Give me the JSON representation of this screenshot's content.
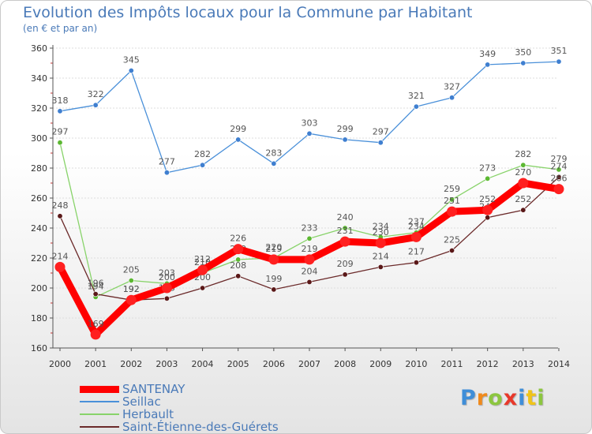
{
  "chart_data": {
    "type": "line",
    "title": "Evolution des Impôts locaux pour la Commune par Habitant",
    "subtitle": "(en € et par an)",
    "xlabel": "",
    "ylabel": "",
    "ylim": [
      160,
      360
    ],
    "yticks": [
      160,
      180,
      200,
      220,
      240,
      260,
      280,
      300,
      320,
      340,
      360
    ],
    "grid": true,
    "legend_position": "bottom-left",
    "categories": [
      "2000",
      "2001",
      "2002",
      "2003",
      "2004",
      "2005",
      "2006",
      "2007",
      "2008",
      "2009",
      "2010",
      "2011",
      "2012",
      "2013",
      "2014"
    ],
    "series": [
      {
        "name": "Seillac",
        "color": "#4a90d9",
        "marker": "#3f7fd0",
        "values": [
          318,
          322,
          345,
          277,
          282,
          299,
          283,
          303,
          299,
          297,
          321,
          327,
          349,
          350,
          351
        ]
      },
      {
        "name": "Herbault",
        "color": "#88d36a",
        "marker": "#5cb832",
        "values": [
          297,
          194,
          205,
          203,
          210,
          219,
          220,
          233,
          240,
          234,
          237,
          259,
          273,
          282,
          279
        ]
      },
      {
        "name": "Saint-Étienne-des-Guérets",
        "color": "#6b2a2a",
        "marker": "#5a1818",
        "values": [
          248,
          196,
          192,
          193,
          200,
          208,
          199,
          204,
          209,
          214,
          217,
          225,
          247,
          252,
          274
        ]
      },
      {
        "name": "SANTENAY",
        "color": "#ff0000",
        "marker": "#ff2020",
        "values": [
          214,
          169,
          192,
          200,
          212,
          226,
          219,
          219,
          231,
          230,
          234,
          251,
          252,
          270,
          266
        ]
      }
    ]
  },
  "legend_items": [
    "SANTENAY",
    "Seillac",
    "Herbault",
    "Saint-Étienne-des-Guérets"
  ],
  "brand": {
    "letters": [
      "P",
      "r",
      "o",
      "x",
      "i",
      "t",
      "i"
    ],
    "colors": [
      "#3f8ed8",
      "#f08a1c",
      "#8cc63f",
      "#e8382a",
      "#3f8ed8",
      "#f0c419",
      "#8cc63f"
    ]
  }
}
